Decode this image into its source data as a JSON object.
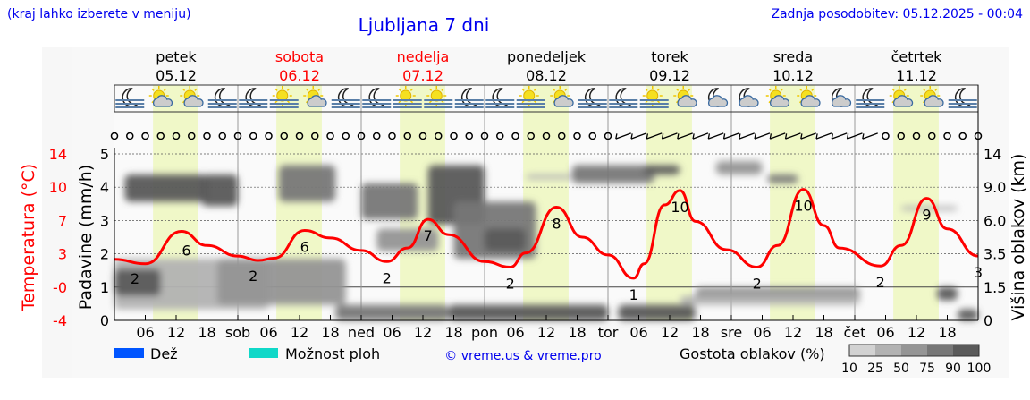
{
  "header": {
    "hint": "(kraj lahko izberete v meniju)",
    "title": "Ljubljana 7 dni",
    "updated": "Zadnja posodobitev: 05.12.2025 - 00:04"
  },
  "colors": {
    "temperature": "#ff0000",
    "daylight": "#f0f8c8",
    "rain": "#0055ff",
    "showers": "#10d8c8",
    "link": "#0000ee",
    "weekend": "#ff0000"
  },
  "days": [
    {
      "name": "petek",
      "date": "05.12",
      "weekend": false
    },
    {
      "name": "sobota",
      "date": "06.12",
      "weekend": true
    },
    {
      "name": "nedelja",
      "date": "07.12",
      "weekend": true
    },
    {
      "name": "ponedeljek",
      "date": "08.12",
      "weekend": false
    },
    {
      "name": "torek",
      "date": "09.12",
      "weekend": false
    },
    {
      "name": "sreda",
      "date": "10.12",
      "weekend": false
    },
    {
      "name": "četrtek",
      "date": "11.12",
      "weekend": false
    }
  ],
  "icons": [
    [
      "moon-fog",
      "sun-cloud",
      "sun-cloud",
      "moon-fog"
    ],
    [
      "moon-fog",
      "sun-fog",
      "sun-cloud",
      "moon-fog"
    ],
    [
      "moon-fog",
      "sun-fog",
      "sun-fog",
      "moon-fog"
    ],
    [
      "moon-fog",
      "sun-fog",
      "sun-cloud",
      "moon-fog"
    ],
    [
      "moon-fog",
      "sun-fog",
      "sun-cloud",
      "moon-cloud"
    ],
    [
      "moon-cloud",
      "sun-cloud",
      "sun-cloud",
      "moon-cloud"
    ],
    [
      "moon-fog",
      "sun-cloud",
      "sun-cloud",
      "moon-fog"
    ]
  ],
  "wind": [
    "calm",
    "calm",
    "calm",
    "calm",
    "calm",
    "calm",
    "calm",
    "calm",
    "calm",
    "calm",
    "calm",
    "calm",
    "calm",
    "calm",
    "calm",
    "calm",
    "calm",
    "calm",
    "calm",
    "calm",
    "calm",
    "calm",
    "calm",
    "calm",
    "calm",
    "calm",
    "calm",
    "calm",
    "calm",
    "calm",
    "calm",
    "calm",
    "calm",
    "barb",
    "barb",
    "barb",
    "barb",
    "barb",
    "barb",
    "barb",
    "barb",
    "barb",
    "barb",
    "barb",
    "barb",
    "barb",
    "barb",
    "barb",
    "barb",
    "barb",
    "calm",
    "calm",
    "calm",
    "calm",
    "calm",
    "calm",
    "calm"
  ],
  "chart_data": {
    "type": "line",
    "daylight": [
      "07:30",
      "16:20"
    ],
    "x_ticks": [
      "06",
      "12",
      "18",
      "sob",
      "06",
      "12",
      "18",
      "ned",
      "06",
      "12",
      "18",
      "pon",
      "06",
      "12",
      "18",
      "tor",
      "06",
      "12",
      "18",
      "sre",
      "06",
      "12",
      "18",
      "čet",
      "06",
      "12",
      "18"
    ],
    "left_axis": {
      "label": "Temperatura (°C)",
      "ticks": [
        "14",
        "10",
        "7",
        "3",
        "-0",
        "-4"
      ]
    },
    "mid_axis": {
      "label": "Padavine (mm/h)",
      "ticks": [
        "5",
        "4",
        "3",
        "2",
        "1",
        "0"
      ],
      "range": [
        0,
        5
      ]
    },
    "right_axis": {
      "label": "Višina oblakov (km)",
      "ticks": [
        "14",
        "9.0",
        "6.0",
        "3.5",
        "1.5",
        "0"
      ]
    },
    "temperature": [
      [
        "05.12 00",
        2.5
      ],
      [
        "05.12 06",
        2.1
      ],
      [
        "05.12 13",
        5.7
      ],
      [
        "05.12 18",
        4.0
      ],
      [
        "06.12 00",
        2.8
      ],
      [
        "06.12 04",
        2.4
      ],
      [
        "06.12 07",
        2.6
      ],
      [
        "06.12 13",
        5.8
      ],
      [
        "06.12 18",
        4.9
      ],
      [
        "07.12 00",
        3.4
      ],
      [
        "07.12 05",
        2.3
      ],
      [
        "07.12 09",
        3.7
      ],
      [
        "07.12 13",
        7.1
      ],
      [
        "07.12 17",
        5.3
      ],
      [
        "08.12 00",
        2.3
      ],
      [
        "08.12 05",
        1.8
      ],
      [
        "08.12 08",
        3.1
      ],
      [
        "08.12 14",
        8.2
      ],
      [
        "08.12 19",
        5.0
      ],
      [
        "09.12 00",
        2.9
      ],
      [
        "09.12 05",
        0.8
      ],
      [
        "09.12 07",
        2.1
      ],
      [
        "09.12 11",
        8.4
      ],
      [
        "09.12 14",
        9.7
      ],
      [
        "09.12 17",
        6.9
      ],
      [
        "09.12 23",
        3.5
      ],
      [
        "10.12 05",
        1.8
      ],
      [
        "10.12 09",
        4.0
      ],
      [
        "10.12 14",
        9.8
      ],
      [
        "10.12 18",
        6.4
      ],
      [
        "10.12 21",
        3.7
      ],
      [
        "11.12 05",
        1.9
      ],
      [
        "11.12 09",
        4.0
      ],
      [
        "11.12 14",
        9.0
      ],
      [
        "11.12 18",
        6.0
      ],
      [
        "12.12 00",
        2.8
      ]
    ],
    "temperature_labels": [
      [
        "05.12 04",
        "2"
      ],
      [
        "05.12 14",
        "6"
      ],
      [
        "06.12 03",
        "2"
      ],
      [
        "06.12 13",
        "6"
      ],
      [
        "07.12 05",
        "2"
      ],
      [
        "07.12 13",
        "7"
      ],
      [
        "08.12 05",
        "2"
      ],
      [
        "08.12 14",
        "8"
      ],
      [
        "09.12 05",
        "1"
      ],
      [
        "09.12 14",
        "10"
      ],
      [
        "10.12 05",
        "2"
      ],
      [
        "10.12 14",
        "10"
      ],
      [
        "11.12 05",
        "2"
      ],
      [
        "11.12 14",
        "9"
      ],
      [
        "12.12 00",
        "3"
      ]
    ],
    "clouds": [
      {
        "from": "05.12 02",
        "to": "05.12 18",
        "km": [
          7.7,
          10.9
        ],
        "density": 90
      },
      {
        "from": "05.12 17",
        "to": "06.12 00",
        "km": [
          7.3,
          10.9
        ],
        "density": 90
      },
      {
        "from": "05.12 00",
        "to": "06.12 06",
        "km": [
          0.5,
          3.2
        ],
        "density": 25
      },
      {
        "from": "05.12 00",
        "to": "05.12 09",
        "km": [
          1.1,
          2.6
        ],
        "density": 90
      },
      {
        "from": "05.12 20",
        "to": "06.12 21",
        "km": [
          0.7,
          3.2
        ],
        "density": 50
      },
      {
        "from": "06.12 08",
        "to": "06.12 19",
        "km": [
          7.7,
          12.3
        ],
        "density": 75
      },
      {
        "from": "07.12 03",
        "to": "07.12 15",
        "km": [
          3.7,
          5.4
        ],
        "density": 50
      },
      {
        "from": "07.12 00",
        "to": "07.12 11",
        "km": [
          6.1,
          9.6
        ],
        "density": 75
      },
      {
        "from": "07.12 13",
        "to": "08.12 00",
        "km": [
          5.7,
          12.3
        ],
        "density": 90
      },
      {
        "from": "07.12 18",
        "to": "08.12 10",
        "km": [
          3.2,
          7.7
        ],
        "density": 75
      },
      {
        "from": "08.12 00",
        "to": "08.12 08",
        "km": [
          3.7,
          5.4
        ],
        "density": 90
      },
      {
        "from": "06.12 19",
        "to": "07.12 17",
        "km": [
          0,
          0.7
        ],
        "density": 75
      },
      {
        "from": "07.12 17",
        "to": "09.12 00",
        "km": [
          0,
          0.7
        ],
        "density": 90
      },
      {
        "from": "08.12 08",
        "to": "08.12 17",
        "km": [
          10.2,
          10.9
        ],
        "density": 25
      },
      {
        "from": "08.12 17",
        "to": "09.12 09",
        "km": [
          9.6,
          12.3
        ],
        "density": 75
      },
      {
        "from": "09.12 07",
        "to": "09.12 14",
        "km": [
          10.9,
          12.3
        ],
        "density": 90
      },
      {
        "from": "09.12 21",
        "to": "10.12 06",
        "km": [
          10.9,
          12.9
        ],
        "density": 50
      },
      {
        "from": "10.12 07",
        "to": "10.12 13",
        "km": [
          9.6,
          10.9
        ],
        "density": 75
      },
      {
        "from": "09.12 17",
        "to": "11.12 01",
        "km": [
          0.9,
          1.5
        ],
        "density": 50
      },
      {
        "from": "09.12 14",
        "to": "11.12 01",
        "km": [
          0.7,
          1.1
        ],
        "density": 25
      },
      {
        "from": "09.12 02",
        "to": "09.12 17",
        "km": [
          0,
          0.7
        ],
        "density": 90
      },
      {
        "from": "11.12 16",
        "to": "11.12 20",
        "km": [
          0.9,
          1.5
        ],
        "density": 90
      },
      {
        "from": "11.12 20",
        "to": "12.12 00",
        "km": [
          0,
          0.5
        ],
        "density": 90
      },
      {
        "from": "11.12 09",
        "to": "11.12 20",
        "km": [
          6.9,
          7.3
        ],
        "density": 25
      }
    ]
  },
  "legend": {
    "rain": "Dež",
    "showers": "Možnost ploh",
    "copyright": "© vreme.us & vreme.pro",
    "density_title": "Gostota oblakov (%)",
    "density_levels": [
      "10",
      "25",
      "50",
      "75",
      "90",
      "100"
    ],
    "density_colors": [
      "#d2d2d2",
      "#b2b2b2",
      "#959595",
      "#777777",
      "#5a5a5a"
    ]
  }
}
